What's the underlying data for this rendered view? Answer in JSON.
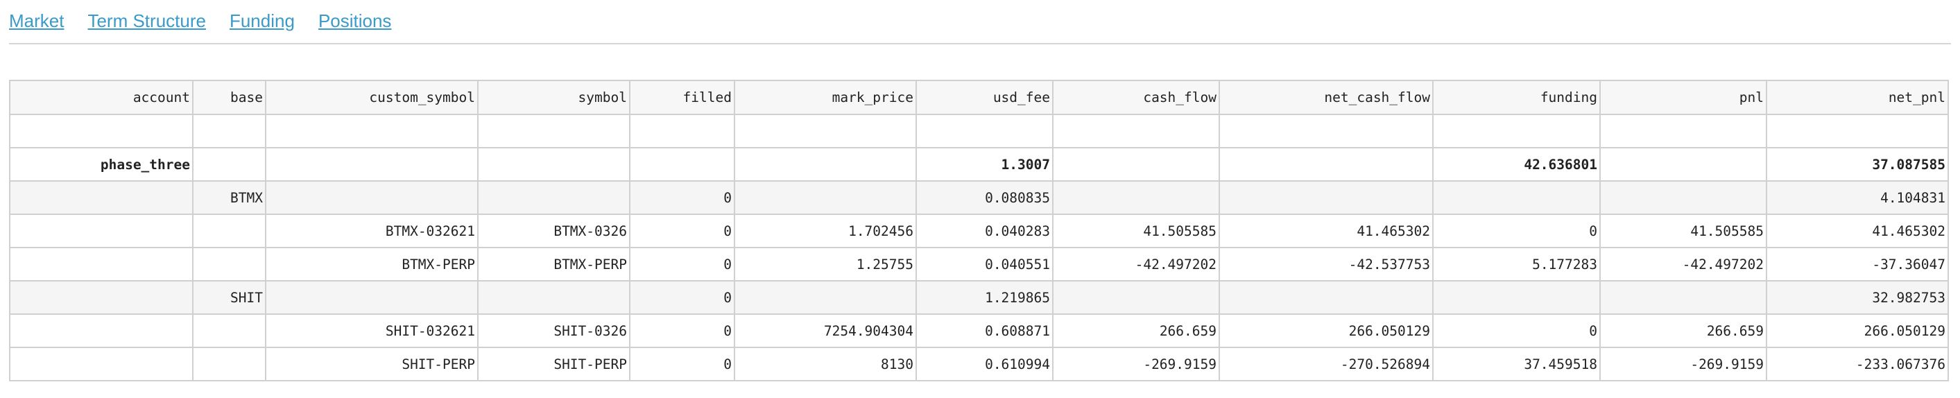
{
  "nav": {
    "links": [
      "Market",
      "Term Structure",
      "Funding",
      "Positions"
    ]
  },
  "table": {
    "columns": [
      "account",
      "base",
      "custom_symbol",
      "symbol",
      "filled",
      "mark_price",
      "usd_fee",
      "cash_flow",
      "net_cash_flow",
      "funding",
      "pnl",
      "net_pnl"
    ],
    "rows": [
      {
        "style": "plain",
        "cells": [
          "",
          "",
          "",
          "",
          "",
          "",
          "",
          "",
          "",
          "",
          "",
          ""
        ]
      },
      {
        "style": "bold",
        "cells": [
          "phase_three",
          "",
          "",
          "",
          "",
          "",
          "1.3007",
          "",
          "",
          "42.636801",
          "",
          "37.087585"
        ]
      },
      {
        "style": "shaded",
        "cells": [
          "",
          "BTMX",
          "",
          "",
          "0",
          "",
          "0.080835",
          "",
          "",
          "",
          "",
          "4.104831"
        ]
      },
      {
        "style": "plain",
        "cells": [
          "",
          "",
          "BTMX-032621",
          "BTMX-0326",
          "0",
          "1.702456",
          "0.040283",
          "41.505585",
          "41.465302",
          "0",
          "41.505585",
          "41.465302"
        ]
      },
      {
        "style": "plain",
        "cells": [
          "",
          "",
          "BTMX-PERP",
          "BTMX-PERP",
          "0",
          "1.25755",
          "0.040551",
          "-42.497202",
          "-42.537753",
          "5.177283",
          "-42.497202",
          "-37.36047"
        ]
      },
      {
        "style": "shaded",
        "cells": [
          "",
          "SHIT",
          "",
          "",
          "0",
          "",
          "1.219865",
          "",
          "",
          "",
          "",
          "32.982753"
        ]
      },
      {
        "style": "plain",
        "cells": [
          "",
          "",
          "SHIT-032621",
          "SHIT-0326",
          "0",
          "7254.904304",
          "0.608871",
          "266.659",
          "266.050129",
          "0",
          "266.659",
          "266.050129"
        ]
      },
      {
        "style": "plain",
        "cells": [
          "",
          "",
          "SHIT-PERP",
          "SHIT-PERP",
          "0",
          "8130",
          "0.610994",
          "-269.9159",
          "-270.526894",
          "37.459518",
          "-269.9159",
          "-233.067376"
        ]
      }
    ]
  }
}
